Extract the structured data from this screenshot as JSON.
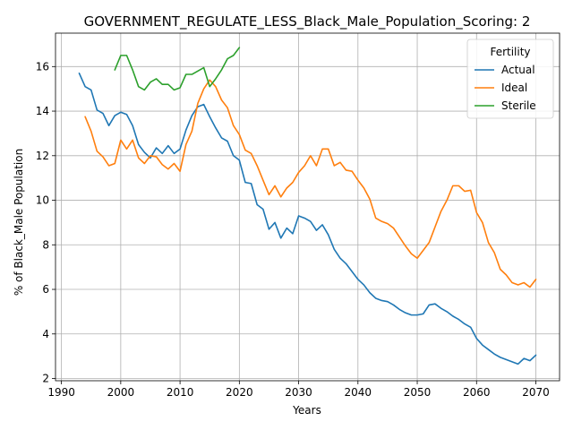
{
  "chart_data": {
    "type": "line",
    "title": "GOVERNMENT_REGULATE_LESS_Black_Male_Population_Scoring: 2",
    "xlabel": "Years",
    "ylabel": "% of Black_Male Population",
    "xlim": [
      1989,
      2074
    ],
    "ylim": [
      1.9,
      17.5
    ],
    "xticks": [
      1990,
      2000,
      2010,
      2020,
      2030,
      2040,
      2050,
      2060,
      2070
    ],
    "yticks": [
      2,
      4,
      6,
      8,
      10,
      12,
      14,
      16
    ],
    "grid": true,
    "legend": {
      "title": "Fertility",
      "position": "top-right"
    },
    "series": [
      {
        "name": "Actual",
        "color": "#1f77b4",
        "x": [
          1993,
          1994,
          1995,
          1996,
          1997,
          1998,
          1999,
          2000,
          2001,
          2002,
          2003,
          2004,
          2005,
          2006,
          2007,
          2008,
          2009,
          2010,
          2011,
          2012,
          2013,
          2014,
          2015,
          2016,
          2017,
          2018,
          2019,
          2020,
          2021,
          2022,
          2023,
          2024,
          2025,
          2026,
          2027,
          2028,
          2029,
          2030,
          2031,
          2032,
          2033,
          2034,
          2035,
          2036,
          2037,
          2038,
          2039,
          2040,
          2041,
          2042,
          2043,
          2044,
          2045,
          2046,
          2047,
          2048,
          2049,
          2050,
          2051,
          2052,
          2053,
          2054,
          2055,
          2056,
          2057,
          2058,
          2059,
          2060,
          2061,
          2062,
          2063,
          2064,
          2065,
          2066,
          2067,
          2068,
          2069,
          2070
        ],
        "y": [
          15.7,
          15.1,
          14.95,
          14.05,
          13.9,
          13.35,
          13.8,
          13.95,
          13.85,
          13.35,
          12.5,
          12.15,
          11.9,
          12.35,
          12.1,
          12.45,
          12.1,
          12.3,
          13.15,
          13.8,
          14.2,
          14.3,
          13.75,
          13.25,
          12.8,
          12.65,
          12.0,
          11.8,
          10.8,
          10.75,
          9.8,
          9.6,
          8.7,
          9.0,
          8.3,
          8.75,
          8.5,
          9.3,
          9.2,
          9.05,
          8.65,
          8.9,
          8.45,
          7.8,
          7.4,
          7.15,
          6.8,
          6.45,
          6.2,
          5.85,
          5.6,
          5.5,
          5.45,
          5.3,
          5.1,
          4.95,
          4.85,
          4.85,
          4.9,
          5.3,
          5.35,
          5.15,
          5.0,
          4.8,
          4.65,
          4.45,
          4.3,
          3.8,
          3.5,
          3.3,
          3.1,
          2.95,
          2.85,
          2.75,
          2.65,
          2.9,
          2.8,
          3.05
        ]
      },
      {
        "name": "Ideal",
        "color": "#ff7f0e",
        "x": [
          1994,
          1995,
          1996,
          1997,
          1998,
          1999,
          2000,
          2001,
          2002,
          2003,
          2004,
          2005,
          2006,
          2007,
          2008,
          2009,
          2010,
          2011,
          2012,
          2013,
          2014,
          2015,
          2016,
          2017,
          2018,
          2019,
          2020,
          2021,
          2022,
          2023,
          2024,
          2025,
          2026,
          2027,
          2028,
          2029,
          2030,
          2031,
          2032,
          2033,
          2034,
          2035,
          2036,
          2037,
          2038,
          2039,
          2040,
          2041,
          2042,
          2043,
          2044,
          2045,
          2046,
          2047,
          2048,
          2049,
          2050,
          2051,
          2052,
          2053,
          2054,
          2055,
          2056,
          2057,
          2058,
          2059,
          2060,
          2061,
          2062,
          2063,
          2064,
          2065,
          2066,
          2067,
          2068,
          2069,
          2070
        ],
        "y": [
          13.75,
          13.1,
          12.2,
          11.95,
          11.55,
          11.65,
          12.7,
          12.3,
          12.7,
          11.9,
          11.65,
          12.0,
          11.95,
          11.6,
          11.4,
          11.65,
          11.3,
          12.5,
          13.1,
          14.35,
          15.0,
          15.4,
          15.1,
          14.5,
          14.15,
          13.35,
          12.95,
          12.25,
          12.1,
          11.55,
          10.9,
          10.25,
          10.65,
          10.15,
          10.55,
          10.8,
          11.25,
          11.55,
          12.0,
          11.55,
          12.3,
          12.3,
          11.55,
          11.7,
          11.35,
          11.3,
          10.9,
          10.55,
          10.05,
          9.2,
          9.05,
          8.95,
          8.75,
          8.35,
          7.95,
          7.6,
          7.4,
          7.75,
          8.1,
          8.8,
          9.5,
          10.0,
          10.65,
          10.65,
          10.4,
          10.45,
          9.45,
          9.0,
          8.1,
          7.65,
          6.9,
          6.65,
          6.3,
          6.2,
          6.3,
          6.1,
          6.45
        ]
      },
      {
        "name": "Sterile",
        "color": "#2ca02c",
        "x": [
          1999,
          2000,
          2001,
          2002,
          2003,
          2004,
          2005,
          2006,
          2007,
          2008,
          2009,
          2010,
          2011,
          2012,
          2013,
          2014,
          2015,
          2016,
          2017,
          2018,
          2019,
          2020
        ],
        "y": [
          15.85,
          16.5,
          16.5,
          15.85,
          15.1,
          14.95,
          15.3,
          15.45,
          15.2,
          15.2,
          14.95,
          15.05,
          15.65,
          15.65,
          15.8,
          15.95,
          15.1,
          15.45,
          15.85,
          16.35,
          16.5,
          16.85
        ]
      }
    ]
  }
}
